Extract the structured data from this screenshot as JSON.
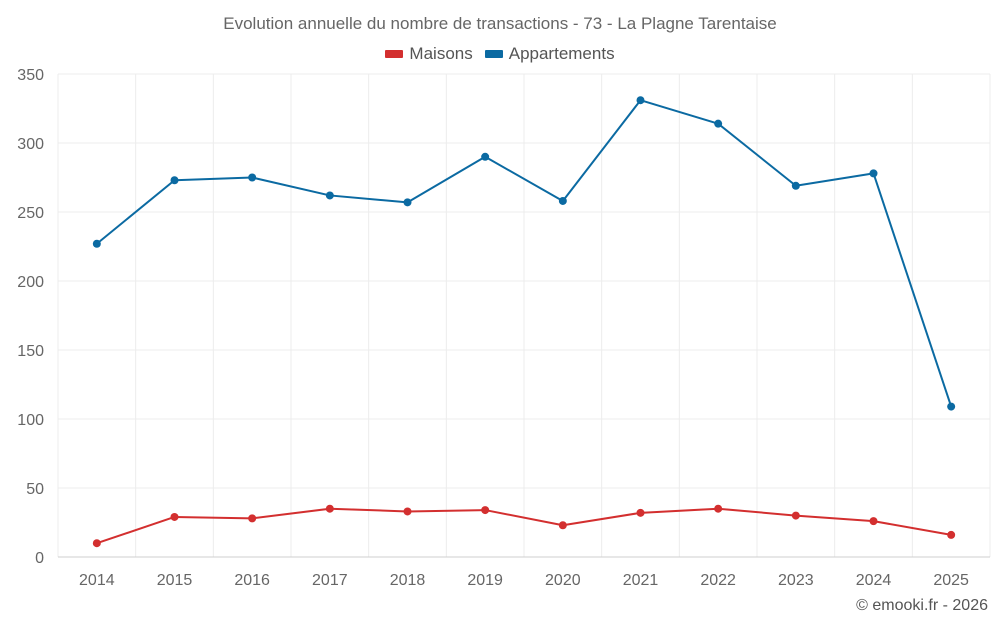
{
  "chart_data": {
    "type": "line",
    "title": "Evolution annuelle du nombre de transactions - 73 - La Plagne Tarentaise",
    "categories": [
      "2014",
      "2015",
      "2016",
      "2017",
      "2018",
      "2019",
      "2020",
      "2021",
      "2022",
      "2023",
      "2024",
      "2025"
    ],
    "series": [
      {
        "name": "Maisons",
        "color": "#d32f2f",
        "values": [
          10,
          29,
          28,
          35,
          33,
          34,
          23,
          32,
          35,
          30,
          26,
          16
        ]
      },
      {
        "name": "Appartements",
        "color": "#0b6aa2",
        "values": [
          227,
          273,
          275,
          262,
          257,
          290,
          258,
          331,
          314,
          269,
          278,
          109
        ]
      }
    ],
    "ylim": [
      0,
      350
    ],
    "yticks": [
      0,
      50,
      100,
      150,
      200,
      250,
      300,
      350
    ],
    "grid": true,
    "legend": "top-center",
    "xlabel": "",
    "ylabel": ""
  },
  "credit": "© emooki.fr - 2026"
}
